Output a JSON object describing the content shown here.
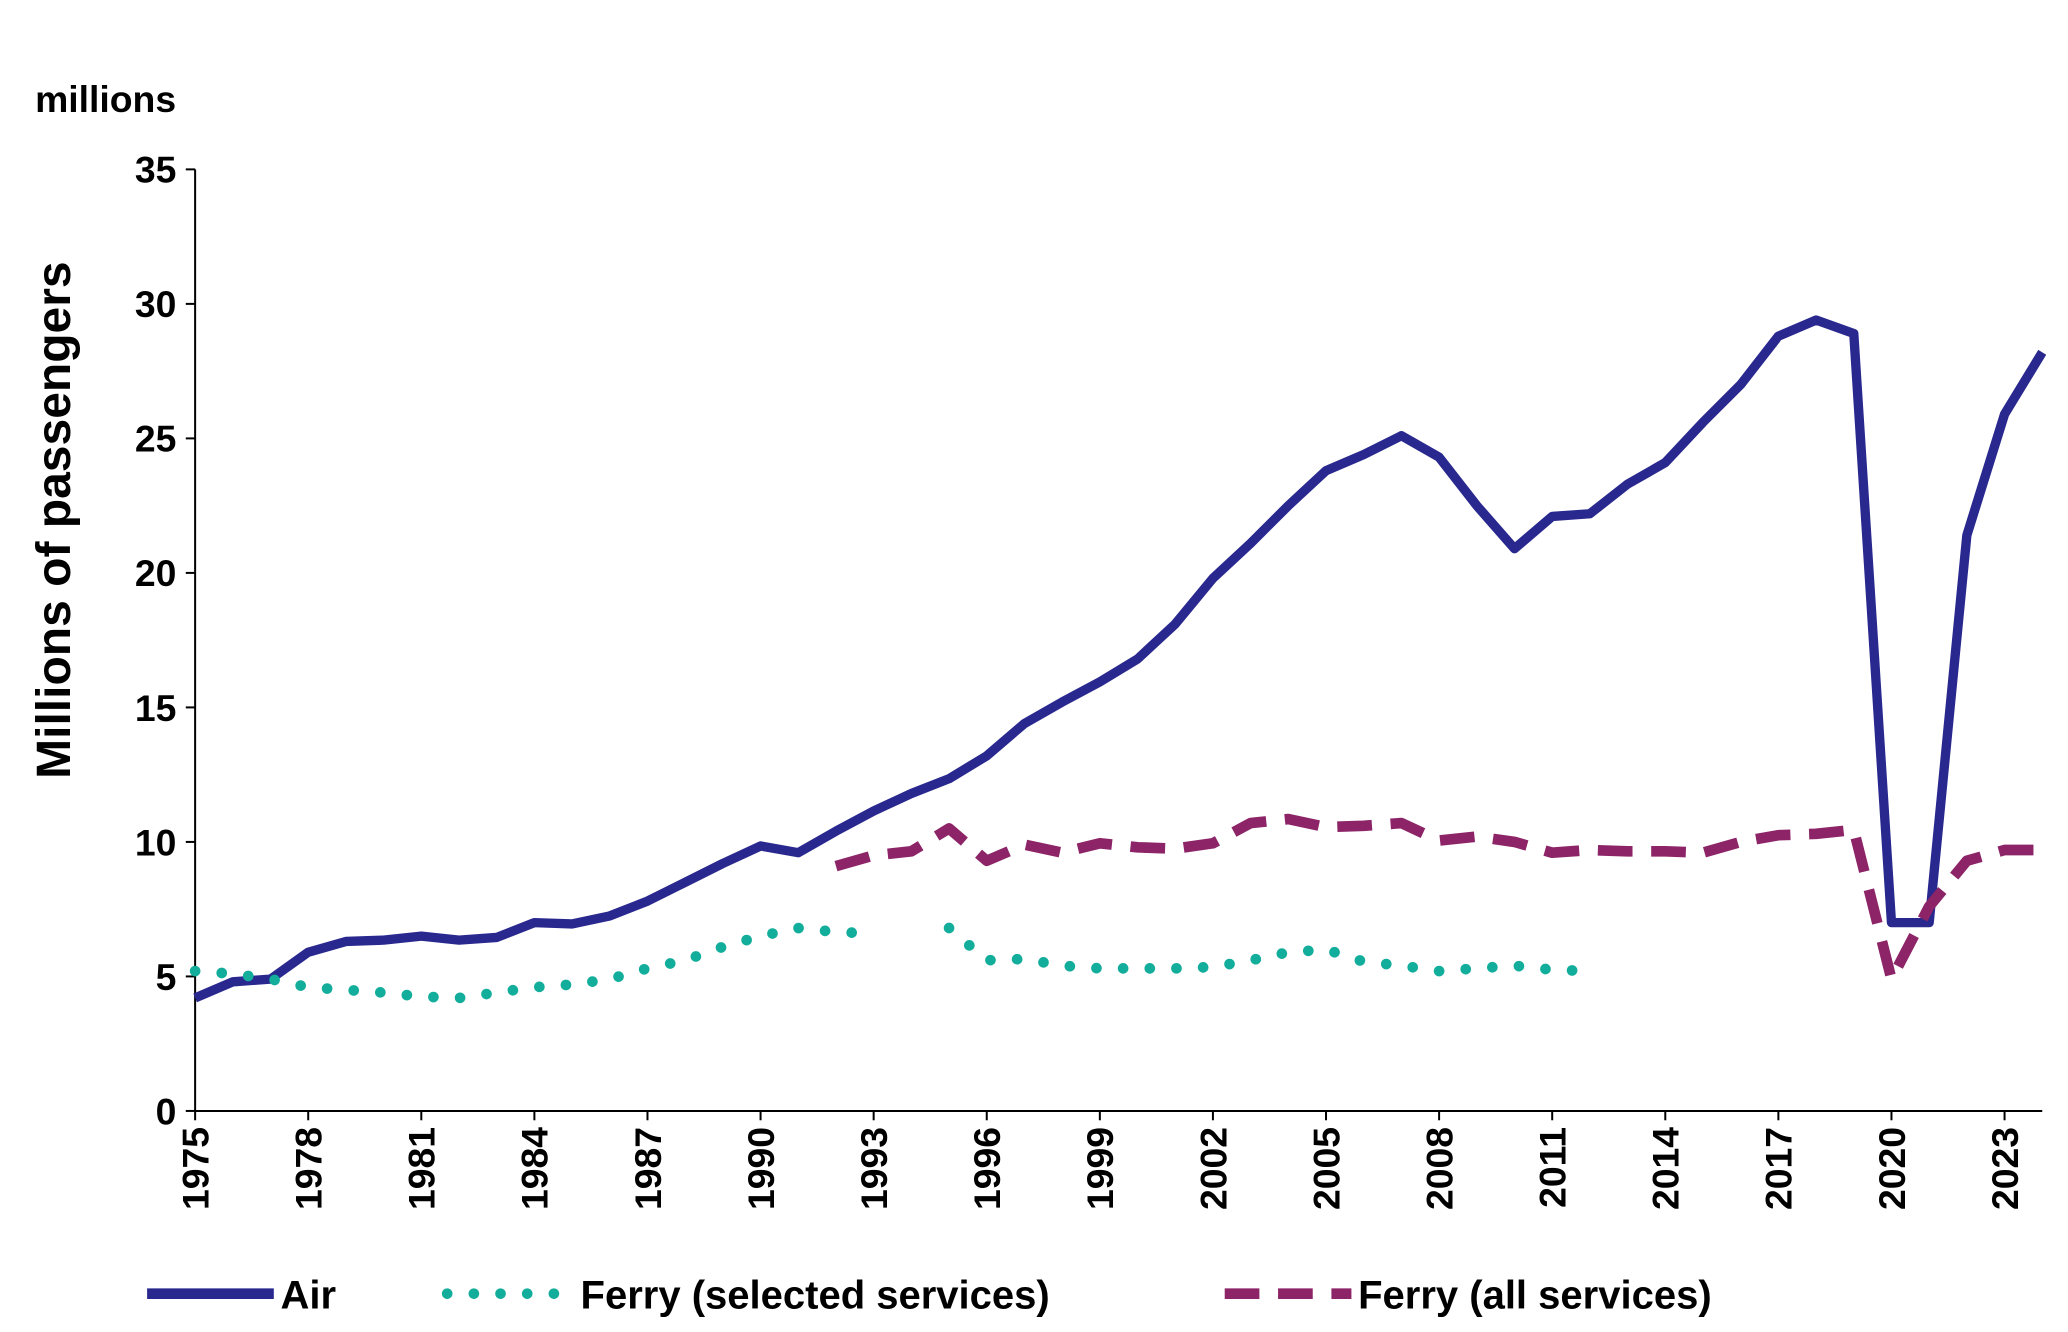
{
  "chart_data": {
    "type": "line",
    "unit_label": "millions",
    "y_label": "Millions of passengers",
    "x": [
      1975,
      1976,
      1977,
      1978,
      1979,
      1980,
      1981,
      1982,
      1983,
      1984,
      1985,
      1986,
      1987,
      1988,
      1989,
      1990,
      1991,
      1992,
      1993,
      1994,
      1995,
      1996,
      1997,
      1998,
      1999,
      2000,
      2001,
      2002,
      2003,
      2004,
      2005,
      2006,
      2007,
      2008,
      2009,
      2010,
      2011,
      2012,
      2013,
      2014,
      2015,
      2016,
      2017,
      2018,
      2019,
      2020,
      2021,
      2022,
      2023,
      2024
    ],
    "xlim": [
      1975,
      2024
    ],
    "xticks": [
      1975,
      1978,
      1981,
      1984,
      1987,
      1990,
      1993,
      1996,
      1999,
      2002,
      2005,
      2008,
      2011,
      2014,
      2017,
      2020,
      2023
    ],
    "ylim": [
      0,
      35
    ],
    "yticks": [
      0,
      5,
      10,
      15,
      20,
      25,
      30,
      35
    ],
    "legend": "bottom",
    "series": [
      {
        "name": "Air",
        "color": "#29288f",
        "dash": "solid",
        "values": [
          4.2,
          4.8,
          4.9,
          5.9,
          6.3,
          6.35,
          6.5,
          6.35,
          6.45,
          7.0,
          6.95,
          7.25,
          7.8,
          8.5,
          9.2,
          9.85,
          9.6,
          10.4,
          11.15,
          11.8,
          12.35,
          13.2,
          14.4,
          15.2,
          15.95,
          16.8,
          18.1,
          19.8,
          21.1,
          22.5,
          23.8,
          24.4,
          25.1,
          24.3,
          22.5,
          20.9,
          22.1,
          22.2,
          23.3,
          24.1,
          25.6,
          27.0,
          28.8,
          29.4,
          28.9,
          7.0,
          7.0,
          21.4,
          25.9,
          28.2
        ]
      },
      {
        "name": "Ferry (selected services)",
        "color": "#13ad9b",
        "dash": "dotted",
        "values": [
          5.2,
          5.1,
          4.9,
          4.6,
          4.5,
          4.4,
          4.25,
          4.2,
          4.4,
          4.6,
          4.7,
          4.9,
          5.3,
          5.6,
          6.1,
          6.5,
          6.8,
          6.65,
          6.6,
          null,
          6.8,
          5.6,
          5.65,
          5.4,
          5.3,
          5.3,
          5.3,
          5.35,
          5.6,
          5.9,
          6.0,
          5.55,
          5.4,
          5.2,
          5.3,
          5.4,
          5.25,
          5.2,
          null,
          null,
          null,
          null,
          null,
          null,
          null,
          null,
          null,
          null,
          null,
          null
        ]
      },
      {
        "name": "Ferry (all services)",
        "color": "#8c2467",
        "dash": "dashed",
        "values": [
          null,
          null,
          null,
          null,
          null,
          null,
          null,
          null,
          null,
          null,
          null,
          null,
          null,
          null,
          null,
          null,
          null,
          9.1,
          9.5,
          9.65,
          10.5,
          9.3,
          9.9,
          9.6,
          9.95,
          9.8,
          9.75,
          9.95,
          10.7,
          10.85,
          10.55,
          10.6,
          10.7,
          10.05,
          10.2,
          10.0,
          9.6,
          9.7,
          9.65,
          9.65,
          9.6,
          10.0,
          10.25,
          10.3,
          10.45,
          4.9,
          7.6,
          9.3,
          9.7,
          9.7
        ]
      }
    ]
  }
}
